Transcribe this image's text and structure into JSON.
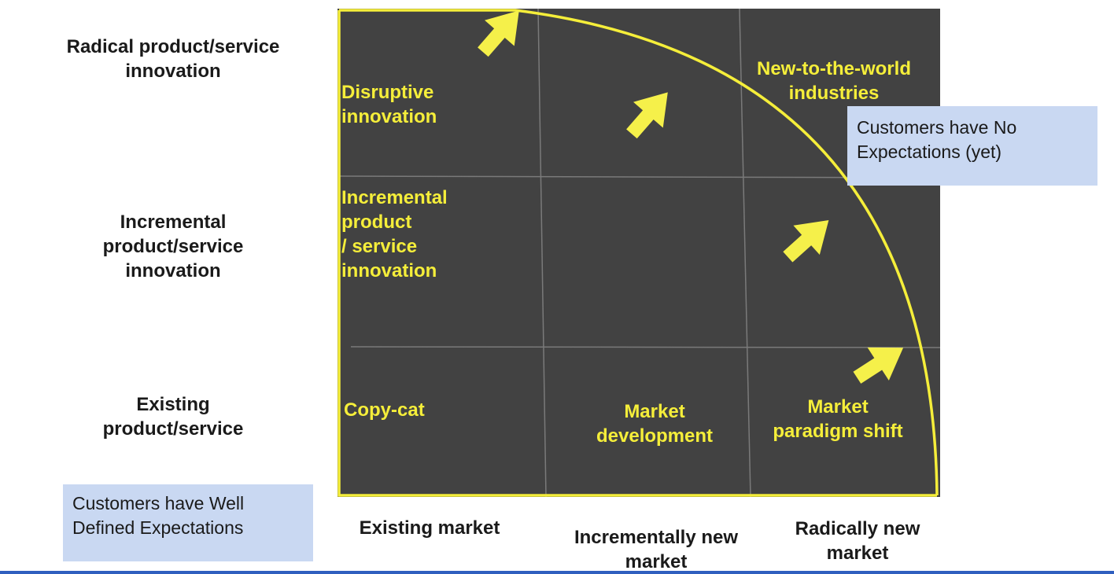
{
  "colors": {
    "panel_bg": "#424242",
    "border": "#f5ee3a",
    "label_text": "#f5ee3a",
    "arrow": "#f5f04a",
    "grid": "#7a7a7a",
    "callout_bg": "#c9d8f2",
    "accent_line": "#2f5fbf"
  },
  "y_axis_labels": [
    [
      "Radical product/service",
      "innovation"
    ],
    [
      "Incremental",
      "product/service",
      "innovation"
    ],
    [
      "Existing",
      "product/service"
    ]
  ],
  "x_axis_labels": [
    [
      "Existing market"
    ],
    [
      "Incrementally new",
      "market"
    ],
    [
      "Radically new",
      "market"
    ]
  ],
  "cells": {
    "disruptive": [
      "Disruptive",
      "innovation"
    ],
    "new_world": [
      "New-to-the-world",
      "industries"
    ],
    "incremental": [
      "Incremental",
      "product",
      "/ service",
      "innovation"
    ],
    "copycat": [
      "Copy-cat"
    ],
    "market_dev": [
      "Market",
      "development"
    ],
    "paradigm": [
      "Market",
      "paradigm shift"
    ]
  },
  "callouts": {
    "no_expectations": [
      "Customers have No",
      "Expectations (yet)"
    ],
    "well_defined": [
      "Customers have Well",
      "Defined Expectations"
    ]
  },
  "arrow_icon": "arrow-up-right-icon"
}
